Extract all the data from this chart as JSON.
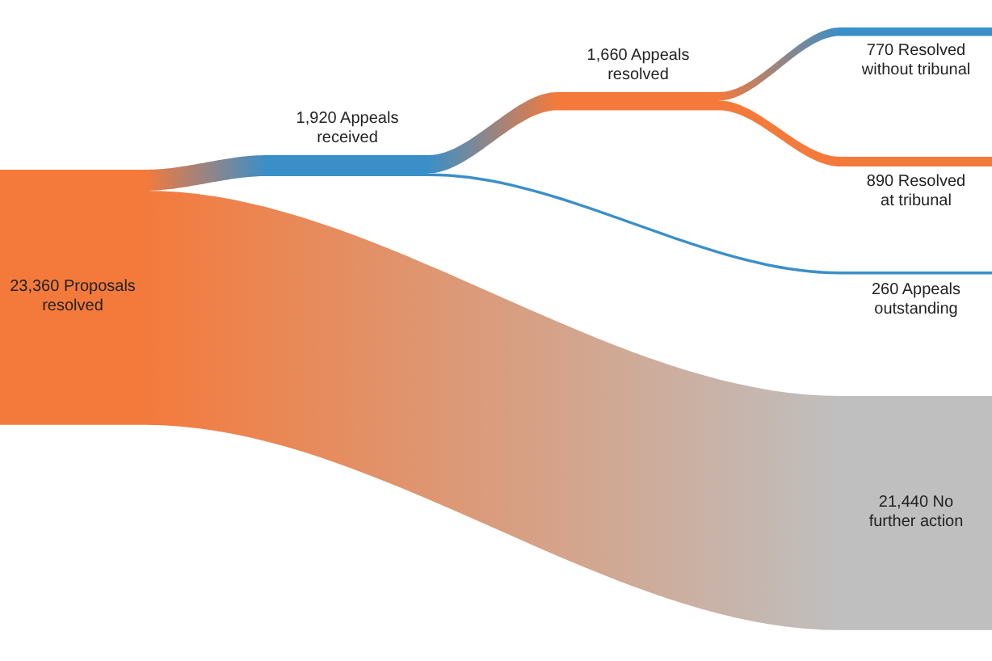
{
  "chart_data": {
    "type": "other",
    "categories": [
      "Proposals resolved",
      "Appeals received",
      "Appeals resolved",
      "Resolved without tribunal",
      "Resolved at tribunal",
      "Appeals outstanding",
      "No further action"
    ],
    "value_labels": [
      "23,360",
      "1,920",
      "1,660",
      "770",
      "890",
      "260",
      "21,440"
    ],
    "values": [
      23360,
      1920,
      1660,
      770,
      890,
      260,
      21440
    ],
    "colors": [
      "#f47a3c",
      "#3a8fc8",
      "#f47a3c",
      "#3a8fc8",
      "#f47a3c",
      "#3a8fc8",
      "#bfbfbf"
    ]
  }
}
